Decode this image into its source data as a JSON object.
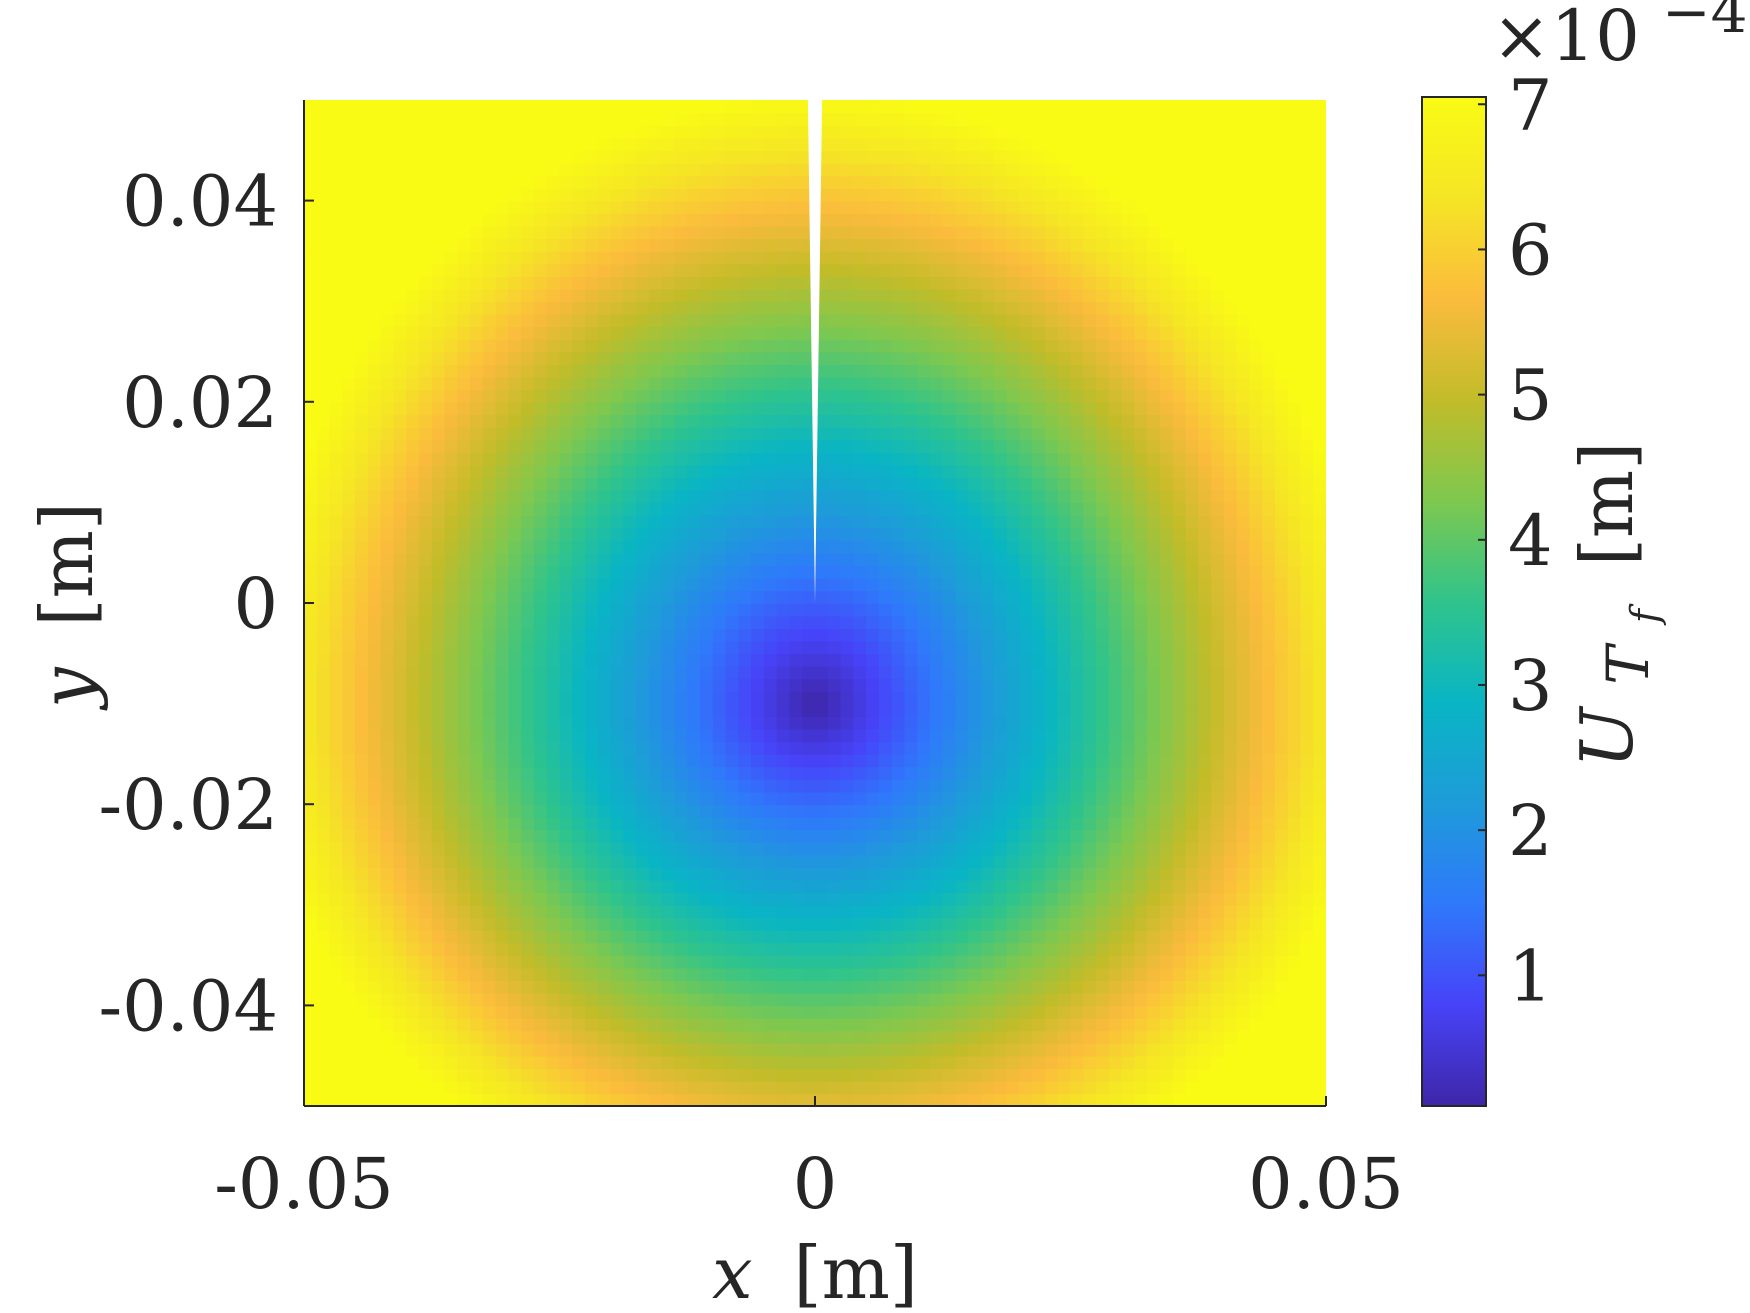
{
  "chart_data": {
    "type": "heatmap",
    "title": "",
    "field_description_note": null,
    "x": {
      "label_var": "x",
      "label_unit": "[m]",
      "range": [
        -0.05,
        0.05
      ],
      "ticks": [
        -0.05,
        0,
        0.05
      ],
      "tick_labels": [
        "-0.05",
        "0",
        "0.05"
      ]
    },
    "y": {
      "label_var": "y",
      "label_unit": "[m]",
      "range": [
        -0.05,
        0.05
      ],
      "ticks": [
        0.04,
        0.02,
        0,
        -0.02,
        -0.04
      ],
      "tick_labels": [
        "0.04",
        "0.02",
        "0",
        "-0.02",
        "-0.04"
      ]
    },
    "colorbar": {
      "label_var": "U",
      "label_sub": "T",
      "label_subsub": "f",
      "label_unit": "[m]",
      "multiplier_base": "×10",
      "multiplier_exp": "−4",
      "range": [
        0.1,
        7.05
      ],
      "ticks": [
        1,
        2,
        3,
        4,
        5,
        6,
        7
      ],
      "tick_labels": [
        "1",
        "2",
        "3",
        "4",
        "5",
        "6",
        "7"
      ],
      "colormap": "parula"
    },
    "field": {
      "minimum_location": [
        0,
        -0.01
      ],
      "minimum_value": 0.1,
      "value_at_corner_top": 7.0,
      "value_at_corner_bottom": 6.3,
      "crack": {
        "tip": [
          0,
          0
        ],
        "top_edge_half_width": 0.0007
      }
    },
    "colors": {
      "axis": "#262626",
      "parula_stops": [
        "#3e26a8",
        "#4743f8",
        "#2f79fb",
        "#1e9bd9",
        "#09b5c4",
        "#30c48b",
        "#7ec84f",
        "#c2bc29",
        "#fbbb3d",
        "#f5e525",
        "#f9fb15"
      ]
    }
  }
}
